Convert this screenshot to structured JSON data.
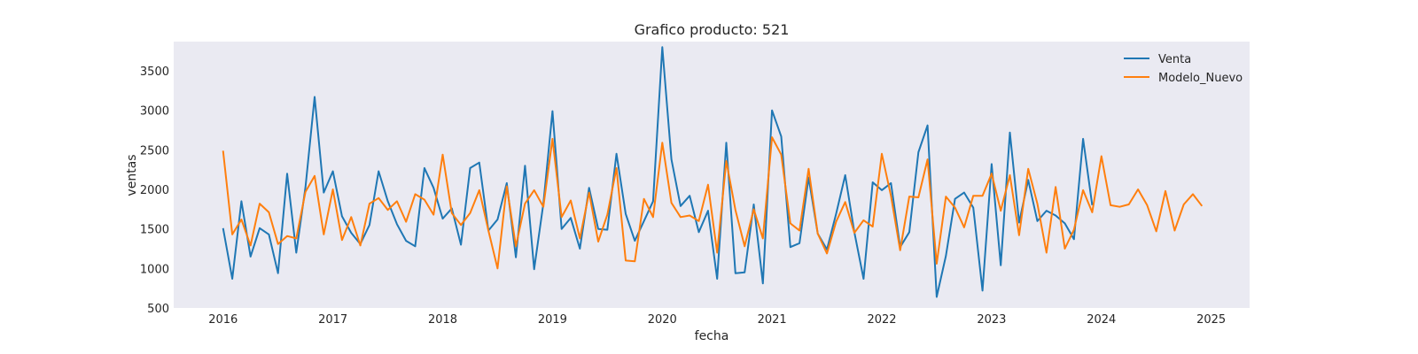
{
  "chart_data": {
    "type": "line",
    "title": "Grafico producto: 521",
    "xlabel": "fecha",
    "ylabel": "ventas",
    "xlim": [
      2015.55,
      2025.35
    ],
    "ylim": [
      500,
      3870
    ],
    "xticks": [
      2016,
      2017,
      2018,
      2019,
      2020,
      2021,
      2022,
      2023,
      2024,
      2025
    ],
    "xtick_labels": [
      "2016",
      "2017",
      "2018",
      "2019",
      "2020",
      "2021",
      "2022",
      "2023",
      "2024",
      "2025"
    ],
    "yticks": [
      500,
      1000,
      1500,
      2000,
      2500,
      3000,
      3500
    ],
    "ytick_labels": [
      "500",
      "1000",
      "1500",
      "2000",
      "2500",
      "3000",
      "3500"
    ],
    "grid": false,
    "legend_position": "top-right",
    "series": [
      {
        "name": "Venta",
        "color": "#1f77b4",
        "x_start": 2016.0,
        "x_step_months": 1,
        "values": [
          1510,
          870,
          1850,
          1150,
          1510,
          1430,
          940,
          2200,
          1200,
          2030,
          3170,
          1960,
          2230,
          1660,
          1450,
          1310,
          1550,
          2230,
          1850,
          1560,
          1350,
          1280,
          2270,
          2020,
          1630,
          1760,
          1300,
          2270,
          2340,
          1480,
          1620,
          2080,
          1140,
          2300,
          990,
          1820,
          2990,
          1500,
          1640,
          1250,
          2020,
          1500,
          1490,
          2450,
          1690,
          1350,
          1600,
          1850,
          3800,
          2380,
          1790,
          1920,
          1460,
          1730,
          870,
          2590,
          940,
          950,
          1810,
          810,
          3000,
          2670,
          1270,
          1320,
          2150,
          1440,
          1240,
          1690,
          2180,
          1460,
          870,
          2090,
          1990,
          2080,
          1270,
          1460,
          2470,
          2810,
          640,
          1160,
          1880,
          1960,
          1770,
          720,
          2320,
          1040,
          2720,
          1580,
          2120,
          1600,
          1730,
          1670,
          1570,
          1370,
          2640,
          1800
        ]
      },
      {
        "name": "Modelo_Nuevo",
        "color": "#ff7f0e",
        "x_start": 2016.0,
        "x_step_months": 1,
        "values": [
          2490,
          1430,
          1620,
          1290,
          1820,
          1710,
          1310,
          1410,
          1380,
          1970,
          2170,
          1430,
          2000,
          1360,
          1650,
          1290,
          1820,
          1890,
          1740,
          1850,
          1590,
          1940,
          1870,
          1680,
          2440,
          1700,
          1550,
          1700,
          1990,
          1480,
          1000,
          2040,
          1280,
          1820,
          1990,
          1780,
          2640,
          1650,
          1860,
          1380,
          1960,
          1340,
          1680,
          2270,
          1100,
          1090,
          1880,
          1650,
          2590,
          1830,
          1650,
          1670,
          1600,
          2060,
          1200,
          2360,
          1740,
          1280,
          1750,
          1380,
          2660,
          2440,
          1570,
          1480,
          2260,
          1440,
          1190,
          1590,
          1840,
          1450,
          1610,
          1530,
          2450,
          1920,
          1230,
          1910,
          1900,
          2380,
          1060,
          1910,
          1770,
          1520,
          1920,
          1920,
          2200,
          1730,
          2180,
          1420,
          2260,
          1820,
          1200,
          2030,
          1250,
          1490,
          1990,
          1710,
          2420,
          1800,
          1780,
          1810,
          2000,
          1800,
          1470,
          1980,
          1480,
          1810,
          1940,
          1790
        ]
      }
    ]
  }
}
